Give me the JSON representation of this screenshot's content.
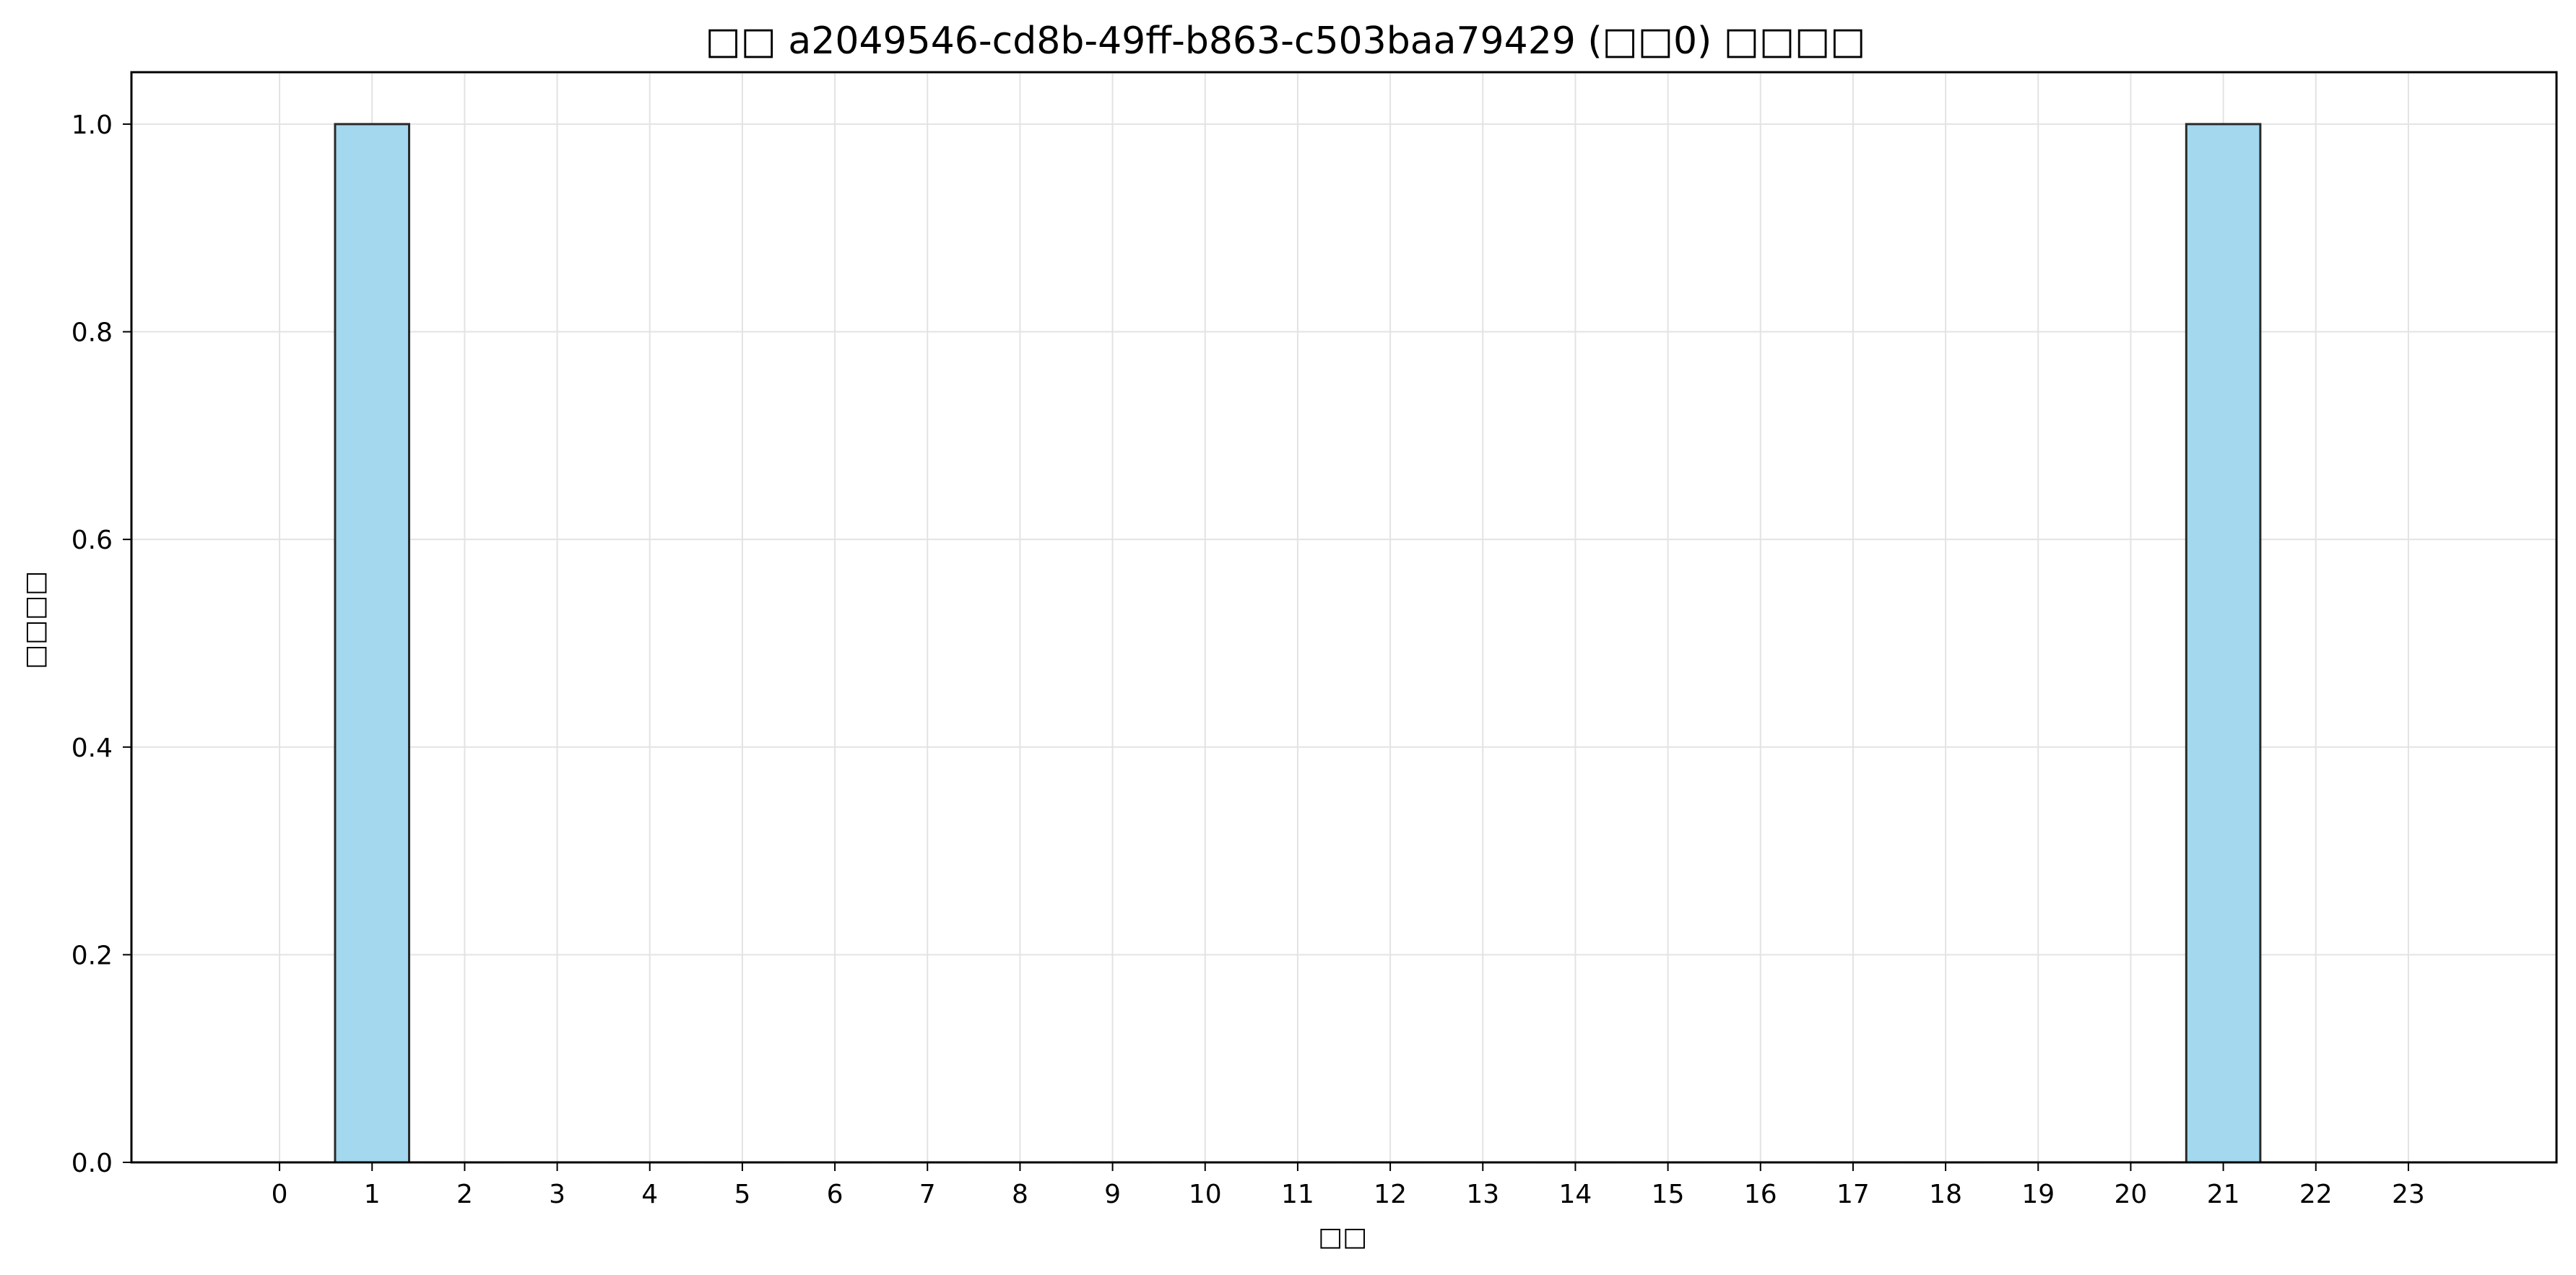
{
  "chart_data": {
    "type": "bar",
    "title": "□□ a2049546-cd8b-49ff-b863-c503baa79429 (□□0) □□□□",
    "xlabel": "□□",
    "ylabel": "□□□□",
    "categories": [
      "0",
      "1",
      "2",
      "3",
      "4",
      "5",
      "6",
      "7",
      "8",
      "9",
      "10",
      "11",
      "12",
      "13",
      "14",
      "15",
      "16",
      "17",
      "18",
      "19",
      "20",
      "21",
      "22",
      "23"
    ],
    "values": [
      0,
      1,
      0,
      0,
      0,
      0,
      0,
      0,
      0,
      0,
      0,
      0,
      0,
      0,
      0,
      0,
      0,
      0,
      0,
      0,
      0,
      1,
      0,
      0
    ],
    "ylim": [
      0,
      1.05
    ],
    "yticks": [
      0.0,
      0.2,
      0.4,
      0.6,
      0.8,
      1.0
    ],
    "ytick_labels": [
      "0.0",
      "0.2",
      "0.4",
      "0.6",
      "0.8",
      "1.0"
    ],
    "grid": true,
    "bar_color": "#a3d8ef",
    "bar_edge_color": "#2a2a2a",
    "grid_color": "#e3e3e3"
  }
}
